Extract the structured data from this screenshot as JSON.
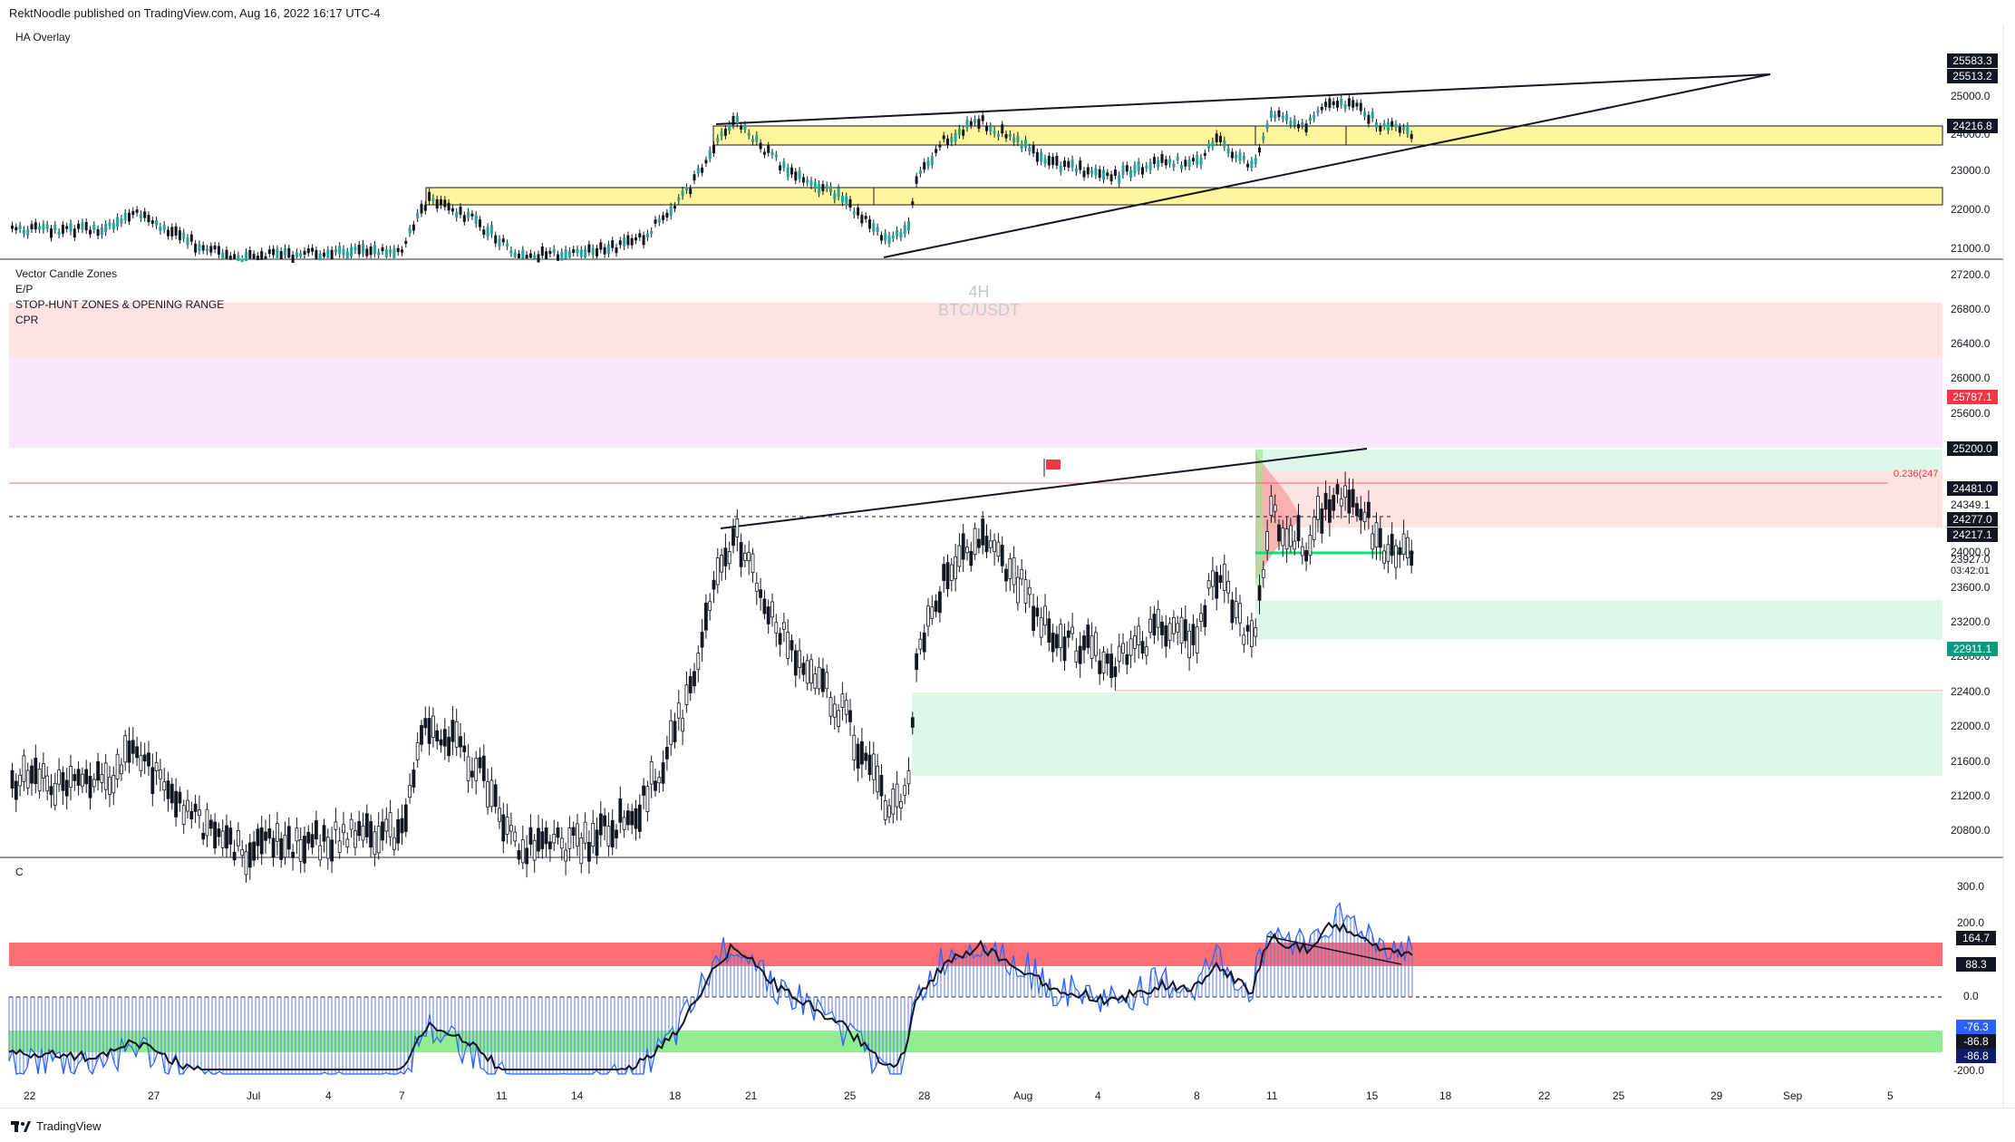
{
  "header": {
    "published": "RektNoodle published on TradingView.com, Aug 16, 2022 16:17 UTC-4"
  },
  "panes": {
    "top": {
      "title": "HA Overlay"
    },
    "main": {
      "titles": [
        "Vector Candle Zones",
        "E/P",
        "STOP-HUNT ZONES & OPENING RANGE",
        "CPR"
      ],
      "watermark_tf": "4H",
      "watermark_sym": "BTC/USDT",
      "fib_label": "0.236(247"
    },
    "osc": {
      "title": "C"
    }
  },
  "top_scale": [
    "25000.0",
    "24000.0",
    "23000.0",
    "22000.0",
    "21000.0"
  ],
  "top_tags": [
    "25583.3",
    "25513.2",
    "24216.8"
  ],
  "main_scale": [
    "27200.0",
    "26800.0",
    "26400.0",
    "26000.0",
    "25600.0",
    "24000.0",
    "23600.0",
    "23200.0",
    "22800.0",
    "22400.0",
    "22000.0",
    "21600.0",
    "21200.0",
    "20800.0"
  ],
  "main_tags": {
    "t25787": "25787.1",
    "t25200": "25200.0",
    "t24481": "24481.0",
    "t24349": "24349.1",
    "t24277": "24277.0",
    "t24217": "24217.1",
    "t23927": "23927.0",
    "countdown": "03:42:01",
    "t22911": "22911.1"
  },
  "osc_scale": [
    "300.0",
    "200.0",
    "0.0",
    "-200.0"
  ],
  "osc_tags": {
    "a": "164.7",
    "b": "88.3",
    "c": "-76.3",
    "d": "-86.8",
    "e": "-86.8"
  },
  "x_axis": [
    "22",
    "27",
    "Jul",
    "4",
    "7",
    "11",
    "14",
    "18",
    "21",
    "25",
    "28",
    "Aug",
    "4",
    "8",
    "11",
    "15",
    "18",
    "22",
    "25",
    "29",
    "Sep",
    "5"
  ],
  "footer": {
    "brand": "TradingView"
  },
  "colors": {
    "yellow_zone": "#fff59d",
    "green_zone": "#dff7e9",
    "red_zone": "#fde2e2",
    "pink_zone": "#f8e6fb",
    "osc_red": "#ff6e73",
    "osc_green": "#90ee90",
    "candle": "#131722"
  }
}
